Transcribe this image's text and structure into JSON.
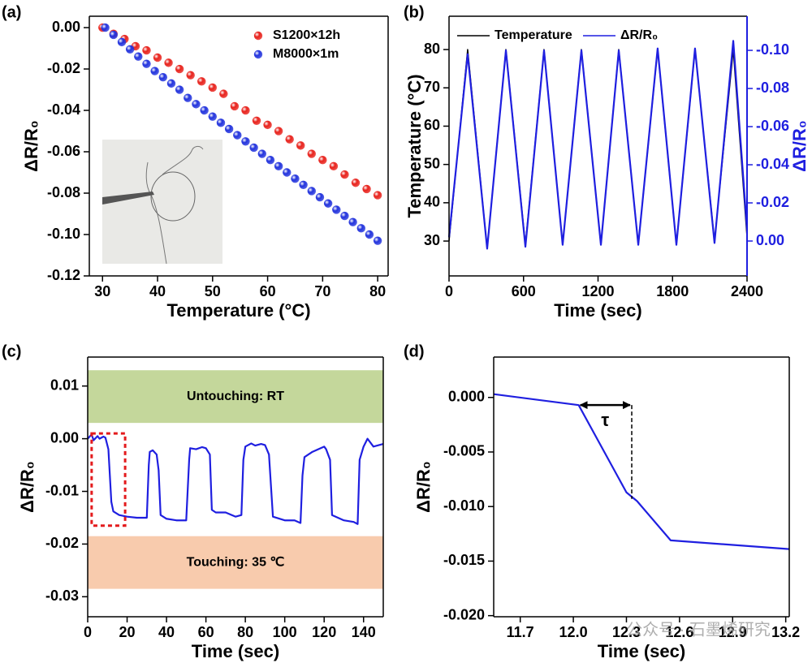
{
  "chart_data": [
    {
      "type": "scatter",
      "panel_label": "(a)",
      "xlabel": "Temperature (°C)",
      "ylabel": "ΔR/R₀",
      "xlim": [
        27.6,
        81.9
      ],
      "xticks": [
        30,
        40,
        50,
        60,
        70,
        80
      ],
      "ylim": [
        -0.12,
        0.0055
      ],
      "yticks": [
        {
          "value": 0,
          "label": "0.00"
        },
        -0.02,
        -0.04,
        -0.06,
        -0.08,
        {
          "value": -0.1,
          "label": "-0.10"
        },
        -0.12
      ],
      "legend": "upper right",
      "series": [
        {
          "name": "S1200×12h",
          "color": "#e8221c",
          "x": [
            30,
            32,
            34,
            36,
            38,
            40,
            42,
            44,
            46,
            48,
            50,
            52,
            54,
            56,
            58,
            60,
            62,
            64,
            66,
            68,
            70,
            72,
            74,
            76,
            78,
            80
          ],
          "values": [
            0,
            -0.003,
            -0.0055,
            -0.009,
            -0.011,
            -0.0145,
            -0.017,
            -0.02,
            -0.023,
            -0.026,
            -0.029,
            -0.032,
            -0.038,
            -0.04,
            -0.045,
            -0.047,
            -0.05,
            -0.054,
            -0.057,
            -0.061,
            -0.064,
            -0.067,
            -0.071,
            -0.075,
            -0.078,
            -0.081
          ]
        },
        {
          "name": "M8000×1m",
          "color": "#2233dd",
          "x": [
            30.5,
            32,
            33.5,
            35,
            36.5,
            38,
            39.5,
            41,
            42.5,
            44,
            45.5,
            47,
            48.5,
            50,
            51.5,
            53,
            54.5,
            56,
            57.5,
            59,
            60.5,
            62,
            63.5,
            65,
            66.5,
            68,
            69.5,
            71,
            72.5,
            74,
            75.5,
            77,
            78.5,
            80
          ],
          "values": [
            0,
            -0.0035,
            -0.007,
            -0.0105,
            -0.014,
            -0.0175,
            -0.021,
            -0.024,
            -0.027,
            -0.03,
            -0.034,
            -0.037,
            -0.04,
            -0.043,
            -0.046,
            -0.049,
            -0.052,
            -0.055,
            -0.058,
            -0.061,
            -0.064,
            -0.067,
            -0.07,
            -0.073,
            -0.076,
            -0.079,
            -0.082,
            -0.085,
            -0.088,
            -0.091,
            -0.094,
            -0.097,
            -0.1,
            -0.103
          ]
        }
      ]
    },
    {
      "type": "line",
      "panel_label": "(b)",
      "xlabel": "Time (sec)",
      "ylabel": "Temperature (°C)",
      "y2label": "ΔR/R₀",
      "y2color": "#1f1fe0",
      "xlim": [
        0,
        2400
      ],
      "xticks": [
        0,
        600,
        1200,
        1800,
        2400
      ],
      "ylim": [
        20.9,
        88.7
      ],
      "yticks": [
        30,
        40,
        50,
        60,
        70,
        80
      ],
      "y2lim": [
        0.0183,
        -0.1179
      ],
      "y2ticks": [
        {
          "value": 0,
          "label": "0.00"
        },
        -0.02,
        -0.04,
        -0.06,
        -0.08,
        {
          "value": -0.1,
          "label": "-0.10"
        }
      ],
      "legend": "upper left",
      "x": [
        0,
        150,
        307,
        458,
        615,
        765,
        915,
        1066,
        1223,
        1367,
        1524,
        1680,
        1831,
        1981,
        2138,
        2289,
        2400
      ],
      "series": [
        {
          "name": "Temperature",
          "color": "#000000",
          "values": [
            30,
            80,
            28,
            80,
            29,
            80,
            29,
            80,
            29,
            80,
            29,
            80,
            29,
            80,
            30,
            80,
            31
          ]
        },
        {
          "name": "ΔR/R₀",
          "color": "#1f1fe0",
          "axis": "y2",
          "values": [
            -0.002,
            -0.098,
            0.004,
            -0.1,
            0.003,
            -0.1,
            0.002,
            -0.1,
            0.002,
            -0.1,
            0.002,
            -0.101,
            0.002,
            -0.101,
            0.001,
            -0.105,
            -0.006
          ]
        }
      ]
    },
    {
      "type": "line",
      "panel_label": "(c)",
      "xlabel": "Time (sec)",
      "ylabel": "ΔR/R₀",
      "xlim": [
        0,
        150
      ],
      "xticks": [
        0,
        20,
        40,
        60,
        80,
        100,
        120,
        140
      ],
      "ylim": [
        -0.0338,
        0.0155
      ],
      "yticks": [
        0.01,
        {
          "value": 0,
          "label": "0.00"
        },
        -0.01,
        -0.02,
        -0.03
      ],
      "bands": [
        {
          "label": "Untouching: RT",
          "from": 0.003,
          "to": 0.013,
          "color": "#c4d79b"
        },
        {
          "label": "Touching: 35 ℃",
          "from": -0.0285,
          "to": -0.0185,
          "color": "#f8cbad"
        }
      ],
      "highlight": {
        "x": [
          2,
          19
        ],
        "y": [
          -0.0165,
          0.001
        ],
        "color": "#e31a1c"
      },
      "series": [
        {
          "name": "ΔR/R₀",
          "color": "#1f1fe0",
          "x": [
            0,
            2,
            3,
            5,
            6,
            8,
            9,
            10.5,
            12,
            13,
            16,
            20,
            25,
            30,
            31,
            31.5,
            33,
            35,
            36,
            37,
            40,
            45,
            50,
            51.5,
            52,
            55,
            58,
            60,
            62,
            63,
            65,
            70,
            75,
            78,
            79,
            80,
            83,
            85,
            88,
            90,
            92,
            94,
            100,
            105,
            108,
            109,
            110,
            114,
            117,
            120,
            121,
            123,
            124,
            130,
            135,
            137,
            138,
            140,
            142,
            145,
            150
          ],
          "values": [
            0,
            0.0008,
            -0.0003,
            0.0005,
            0,
            0.0004,
            0.0002,
            -0.002,
            -0.012,
            -0.0138,
            -0.0145,
            -0.0148,
            -0.015,
            -0.015,
            -0.005,
            -0.0025,
            -0.0022,
            -0.003,
            -0.006,
            -0.0145,
            -0.0152,
            -0.0155,
            -0.0155,
            -0.004,
            -0.0018,
            -0.002,
            -0.0016,
            -0.0018,
            -0.003,
            -0.0135,
            -0.014,
            -0.014,
            -0.0148,
            -0.0145,
            -0.004,
            -0.0015,
            -0.0009,
            -0.0013,
            -0.001,
            -0.0012,
            -0.003,
            -0.0148,
            -0.0155,
            -0.0155,
            -0.016,
            -0.007,
            -0.0035,
            -0.0025,
            -0.002,
            -0.0015,
            -0.002,
            -0.004,
            -0.0145,
            -0.0155,
            -0.0158,
            -0.0162,
            -0.004,
            -0.0015,
            0,
            -0.0015,
            -0.001
          ]
        }
      ]
    },
    {
      "type": "line",
      "panel_label": "(d)",
      "xlabel": "Time (sec)",
      "ylabel": "ΔR/R₀",
      "xlim": [
        11.55,
        13.22
      ],
      "xticks": [
        11.7,
        {
          "value": 12.0,
          "label": "12.0"
        },
        12.3,
        12.6,
        12.9,
        13.2
      ],
      "ylim": [
        -0.0201,
        0.0037
      ],
      "yticks": [
        {
          "value": 0,
          "label": "0.000"
        },
        -0.005,
        {
          "value": -0.01,
          "label": "-0.010"
        },
        -0.015,
        {
          "value": -0.02,
          "label": "-0.020"
        }
      ],
      "annotation": {
        "text": "τ",
        "x_start": 12.03,
        "x_end": 12.33,
        "y": -0.0007,
        "y_drop": -0.0093
      },
      "series": [
        {
          "name": "ΔR/R₀",
          "color": "#1f1fe0",
          "x": [
            11.55,
            12.03,
            12.3,
            12.36,
            12.55,
            13.22
          ],
          "values": [
            0.0003,
            -0.0007,
            -0.0087,
            -0.0095,
            -0.0131,
            -0.0139
          ]
        }
      ]
    }
  ],
  "watermark": "公众号 · 石墨烯研究"
}
